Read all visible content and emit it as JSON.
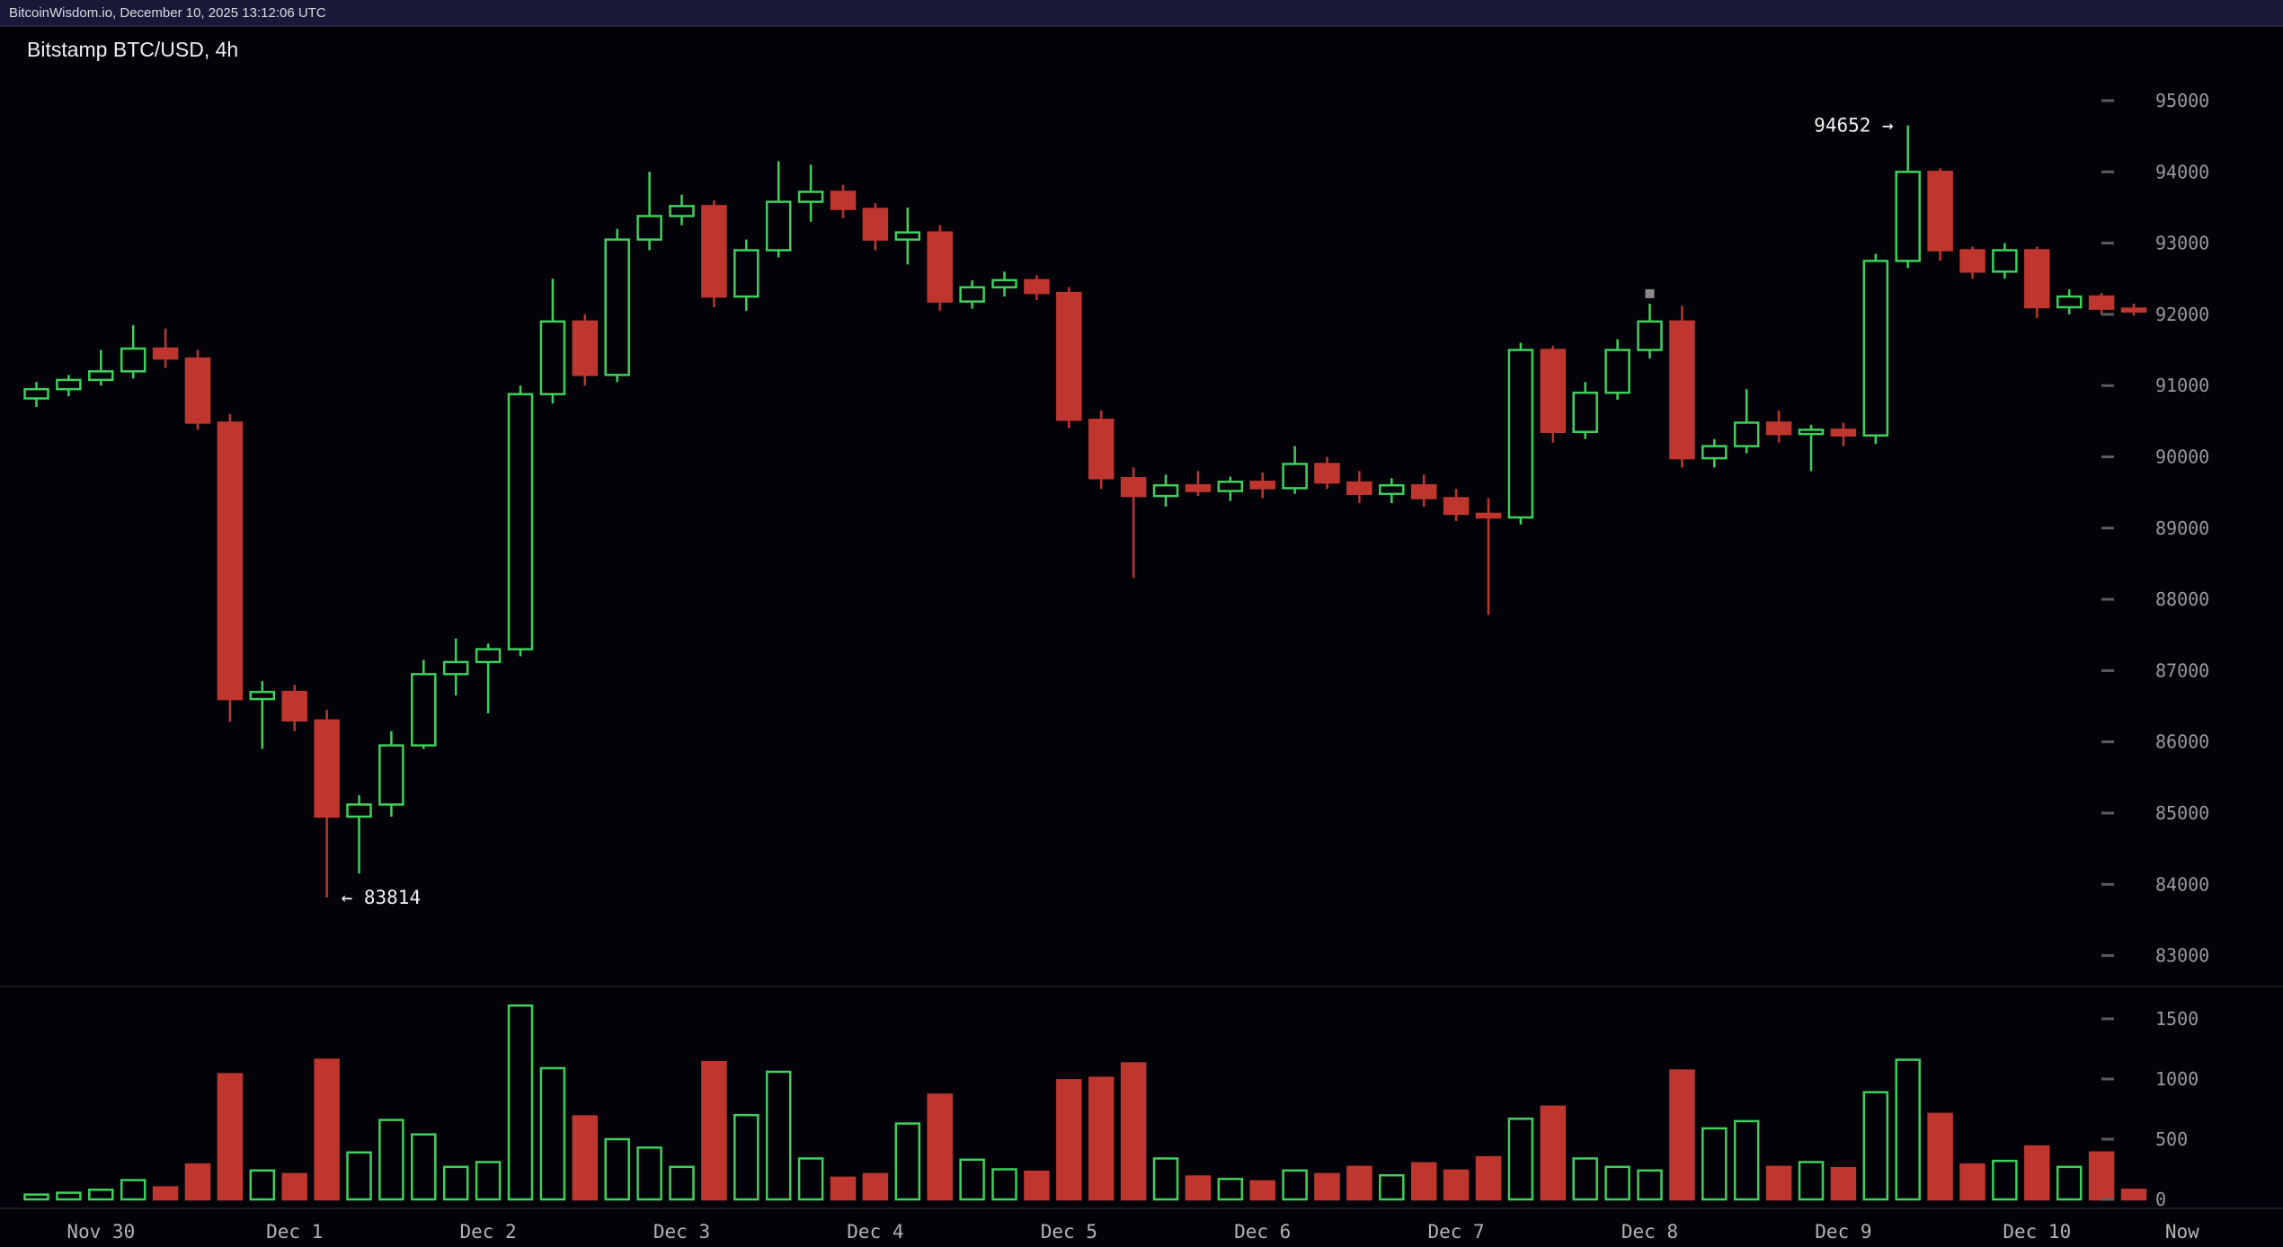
{
  "topbar": {
    "text": "BitcoinWisdom.io, December 10, 2025 13:12:06 UTC"
  },
  "chart": {
    "title": "Bitstamp BTC/USD, 4h"
  },
  "colors": {
    "up": "#3fd05c",
    "down": "#bf362e",
    "background": "#020208",
    "axis_text": "#9b9b9b",
    "time_text": "#b4b4b4",
    "annotation_text": "#f2f2f2",
    "tick_dash": "#5c5c5c",
    "separator": "#202030",
    "marker": "#8a8a8a",
    "topbar_bg": "#181838"
  },
  "price_axis": {
    "ticks": [
      95000,
      94000,
      93000,
      92000,
      91000,
      90000,
      89000,
      88000,
      87000,
      86000,
      85000,
      84000,
      83000
    ]
  },
  "volume_axis": {
    "ticks": [
      1500,
      1000,
      500,
      0
    ]
  },
  "time_axis": {
    "labels": [
      {
        "text": "Nov 30",
        "index": 2
      },
      {
        "text": "Dec 1",
        "index": 8
      },
      {
        "text": "Dec 2",
        "index": 14
      },
      {
        "text": "Dec 3",
        "index": 20
      },
      {
        "text": "Dec 4",
        "index": 26
      },
      {
        "text": "Dec 5",
        "index": 32
      },
      {
        "text": "Dec 6",
        "index": 38
      },
      {
        "text": "Dec 7",
        "index": 44
      },
      {
        "text": "Dec 8",
        "index": 50
      },
      {
        "text": "Dec 9",
        "index": 56
      },
      {
        "text": "Dec 10",
        "index": 62
      },
      {
        "text": "Now",
        "index": 66.5
      }
    ]
  },
  "annotations": {
    "high": {
      "label": "94652 →",
      "price": 94652,
      "candle_index": 58
    },
    "low": {
      "label": "← 83814",
      "price": 83814,
      "candle_index": 9
    },
    "marker": {
      "price": 92290,
      "candle_index": 50
    }
  },
  "chart_data": {
    "type": "candlestick_with_volume",
    "exchange": "Bitstamp",
    "pair": "BTC/USD",
    "interval": "4h",
    "title": "Bitstamp BTC/USD, 4h",
    "price_range": [
      83000,
      95000
    ],
    "volume_range": [
      0,
      1500
    ],
    "session_high": 94652,
    "session_low": 83814,
    "candle_fields": [
      "open",
      "high",
      "low",
      "close",
      "volume"
    ],
    "candles": [
      [
        90820,
        91050,
        90700,
        90950,
        40
      ],
      [
        90950,
        91150,
        90850,
        91080,
        55
      ],
      [
        91080,
        91500,
        91000,
        91200,
        80
      ],
      [
        91200,
        91850,
        91100,
        91520,
        160
      ],
      [
        91520,
        91800,
        91250,
        91380,
        100
      ],
      [
        91380,
        91500,
        90380,
        90480,
        290
      ],
      [
        90480,
        90600,
        86280,
        86600,
        1040
      ],
      [
        86600,
        86850,
        85900,
        86700,
        240
      ],
      [
        86700,
        86800,
        86150,
        86300,
        210
      ],
      [
        86300,
        86450,
        83814,
        84950,
        1160
      ],
      [
        84950,
        85250,
        84150,
        85120,
        390
      ],
      [
        85120,
        86150,
        84950,
        85950,
        660
      ],
      [
        85950,
        87150,
        85900,
        86950,
        540
      ],
      [
        86950,
        87450,
        86650,
        87120,
        270
      ],
      [
        87120,
        87380,
        86400,
        87300,
        310
      ],
      [
        87300,
        91000,
        87200,
        90880,
        1610
      ],
      [
        90880,
        92500,
        90750,
        91900,
        1090
      ],
      [
        91900,
        92000,
        91000,
        91150,
        690
      ],
      [
        91150,
        93200,
        91050,
        93050,
        500
      ],
      [
        93050,
        94000,
        92900,
        93380,
        430
      ],
      [
        93380,
        93680,
        93250,
        93520,
        270
      ],
      [
        93520,
        93600,
        92100,
        92250,
        1140
      ],
      [
        92250,
        93050,
        92050,
        92900,
        700
      ],
      [
        92900,
        94150,
        92800,
        93580,
        1060
      ],
      [
        93580,
        94100,
        93300,
        93720,
        340
      ],
      [
        93720,
        93820,
        93350,
        93480,
        180
      ],
      [
        93480,
        93560,
        92900,
        93050,
        210
      ],
      [
        93050,
        93500,
        92700,
        93150,
        630
      ],
      [
        93150,
        93250,
        92050,
        92180,
        870
      ],
      [
        92180,
        92480,
        92080,
        92380,
        330
      ],
      [
        92380,
        92600,
        92250,
        92480,
        250
      ],
      [
        92480,
        92550,
        92200,
        92300,
        230
      ],
      [
        92300,
        92380,
        90400,
        90520,
        990
      ],
      [
        90520,
        90650,
        89550,
        89700,
        1010
      ],
      [
        89700,
        89850,
        88300,
        89450,
        1130
      ],
      [
        89450,
        89750,
        89300,
        89600,
        340
      ],
      [
        89600,
        89800,
        89450,
        89520,
        190
      ],
      [
        89520,
        89720,
        89380,
        89650,
        170
      ],
      [
        89650,
        89780,
        89420,
        89560,
        150
      ],
      [
        89560,
        90150,
        89480,
        89900,
        240
      ],
      [
        89900,
        90000,
        89550,
        89640,
        210
      ],
      [
        89640,
        89800,
        89350,
        89480,
        270
      ],
      [
        89480,
        89700,
        89350,
        89600,
        200
      ],
      [
        89600,
        89750,
        89300,
        89420,
        300
      ],
      [
        89420,
        89550,
        89100,
        89200,
        240
      ],
      [
        89200,
        89420,
        87780,
        89150,
        350
      ],
      [
        89150,
        91600,
        89050,
        91500,
        670
      ],
      [
        91500,
        91560,
        90200,
        90350,
        770
      ],
      [
        90350,
        91050,
        90250,
        90900,
        340
      ],
      [
        90900,
        91650,
        90800,
        91500,
        270
      ],
      [
        91500,
        92150,
        91380,
        91900,
        240
      ],
      [
        91900,
        92120,
        89850,
        89980,
        1070
      ],
      [
        89980,
        90250,
        89850,
        90150,
        590
      ],
      [
        90150,
        90950,
        90050,
        90480,
        650
      ],
      [
        90480,
        90650,
        90200,
        90320,
        270
      ],
      [
        90320,
        90450,
        89800,
        90380,
        310
      ],
      [
        90380,
        90480,
        90150,
        90300,
        260
      ],
      [
        90300,
        92850,
        90180,
        92750,
        890
      ],
      [
        92750,
        94652,
        92650,
        94000,
        1160
      ],
      [
        94000,
        94050,
        92750,
        92900,
        710
      ],
      [
        92900,
        92950,
        92500,
        92600,
        290
      ],
      [
        92600,
        93000,
        92500,
        92900,
        320
      ],
      [
        92900,
        92950,
        91950,
        92100,
        440
      ],
      [
        92100,
        92350,
        92000,
        92250,
        270
      ],
      [
        92250,
        92300,
        92000,
        92080,
        390
      ],
      [
        92080,
        92150,
        91980,
        92040,
        80
      ]
    ]
  }
}
